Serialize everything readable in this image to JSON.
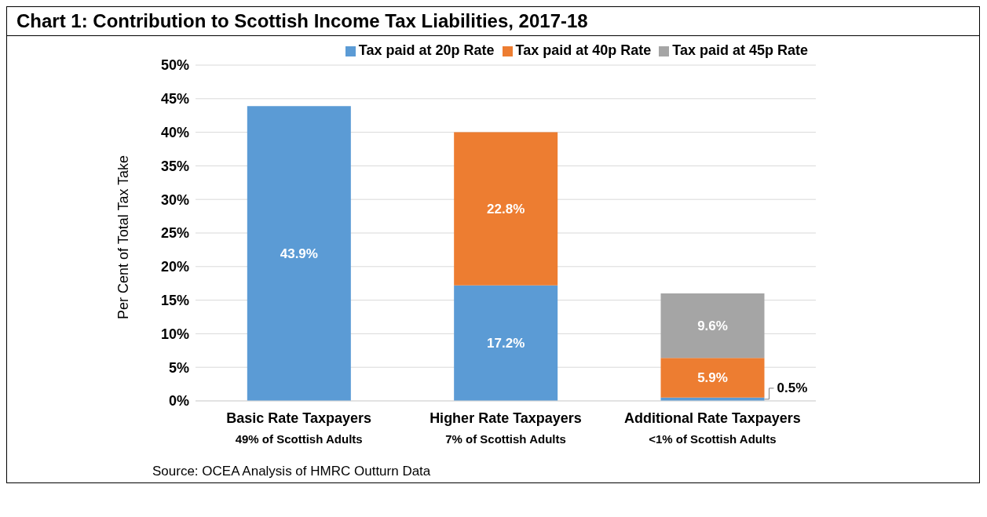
{
  "chart_data": {
    "type": "bar",
    "title": "Chart 1: Contribution to Scottish Income Tax Liabilities, 2017-18",
    "ylabel": "Per Cent of Total Tax Take",
    "categories": [
      "Basic Rate Taxpayers\n49% of Scottish Adults",
      "Higher Rate Taxpayers\n7% of Scottish Adults",
      "Additional Rate Taxpayers\n<1% of Scottish Adults"
    ],
    "series": [
      {
        "name": "Tax paid at 20p Rate",
        "color": "#5b9bd5",
        "values": [
          43.9,
          17.2,
          0.5
        ],
        "value_labels": [
          "43.9%",
          "17.2%",
          "0.5%"
        ]
      },
      {
        "name": "Tax paid at 40p Rate",
        "color": "#ed7d31",
        "values": [
          null,
          22.8,
          5.9
        ],
        "value_labels": [
          null,
          "22.8%",
          "5.9%"
        ]
      },
      {
        "name": "Tax paid at 45p Rate",
        "color": "#a5a5a5",
        "values": [
          null,
          null,
          9.6
        ],
        "value_labels": [
          null,
          null,
          "9.6%"
        ]
      }
    ],
    "stacked": true,
    "ylim": [
      0,
      50
    ],
    "yticks": [
      {
        "value": 0,
        "label": "0%"
      },
      {
        "value": 5,
        "label": "5%"
      },
      {
        "value": 10,
        "label": "10%"
      },
      {
        "value": 15,
        "label": "15%"
      },
      {
        "value": 20,
        "label": "20%"
      },
      {
        "value": 25,
        "label": "25%"
      },
      {
        "value": 30,
        "label": "30%"
      },
      {
        "value": 35,
        "label": "35%"
      },
      {
        "value": 40,
        "label": "40%"
      },
      {
        "value": 45,
        "label": "45%"
      },
      {
        "value": 50,
        "label": "50%"
      }
    ],
    "grid": "y",
    "legend": "top right",
    "annotations": [
      "Source: OCEA Analysis of HMRC Outturn Data"
    ]
  }
}
